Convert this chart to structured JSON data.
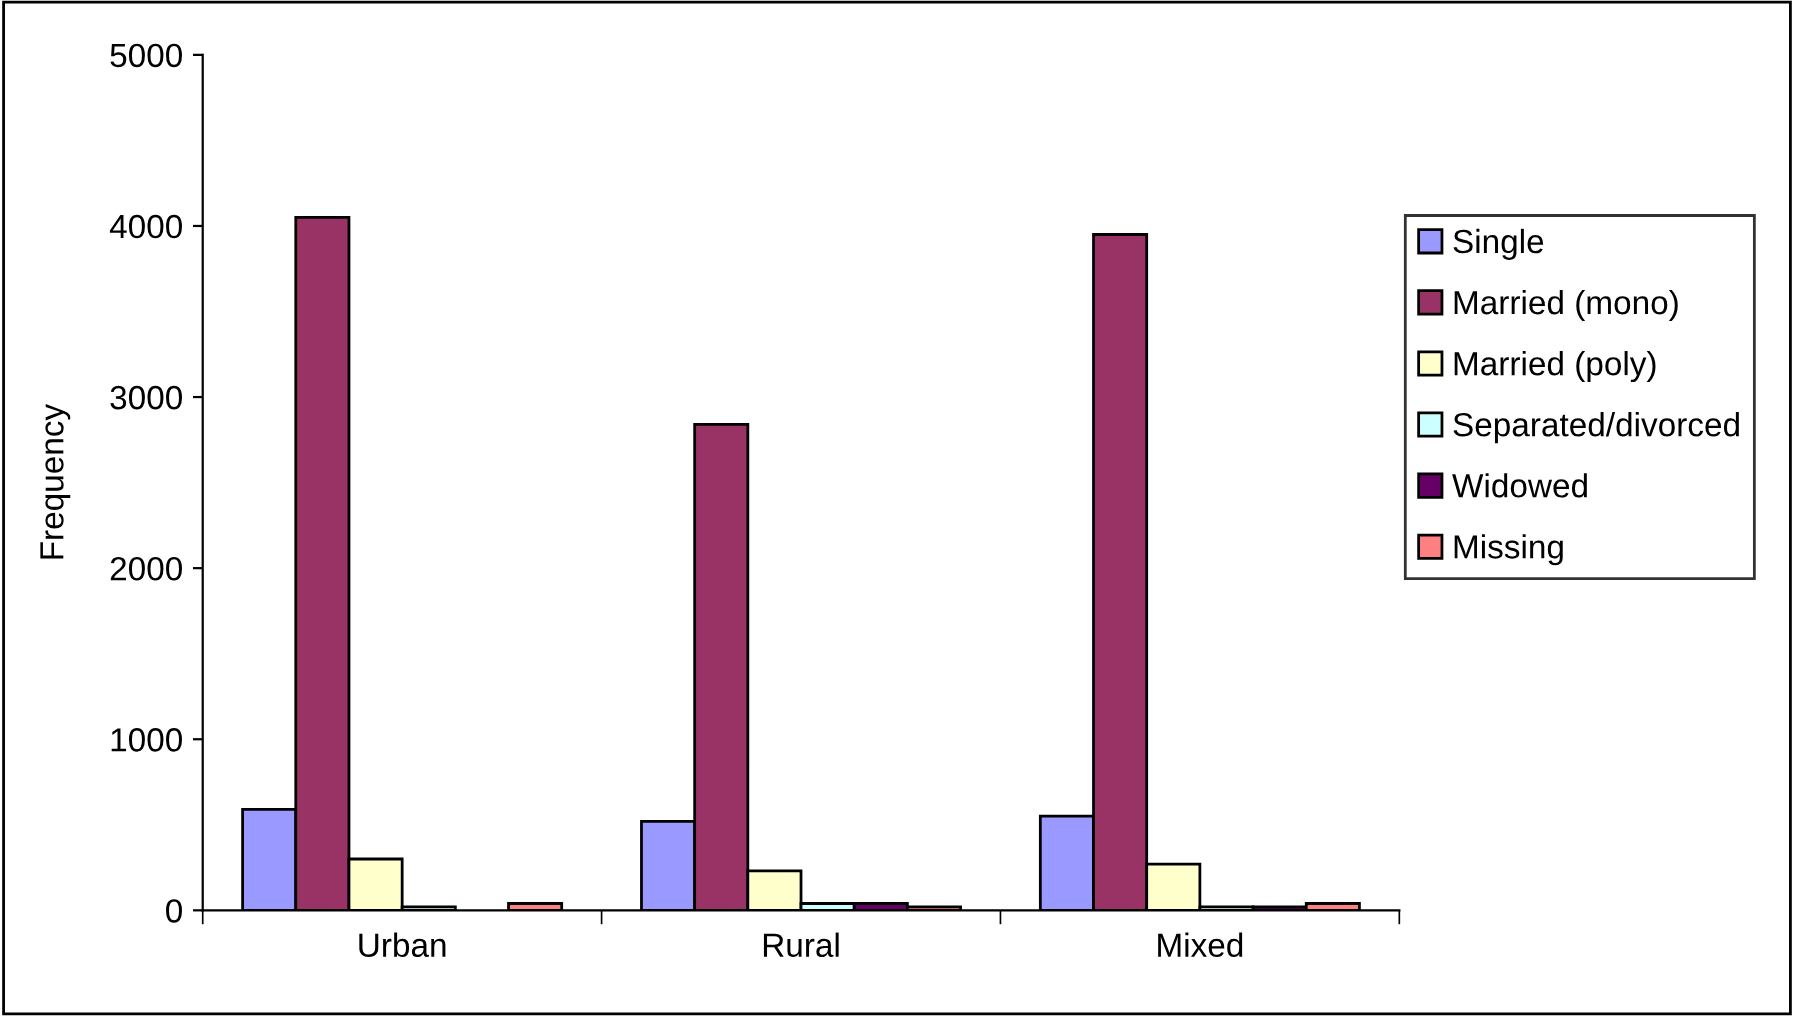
{
  "chart_data": {
    "type": "bar",
    "ylabel": "Frequency",
    "categories": [
      "Urban",
      "Rural",
      "Mixed"
    ],
    "series": [
      {
        "name": "Single",
        "color": "#9999ff",
        "values": [
          590,
          520,
          550
        ]
      },
      {
        "name": "Married (mono)",
        "color": "#993366",
        "values": [
          4050,
          2840,
          3950
        ]
      },
      {
        "name": "Married (poly)",
        "color": "#ffffcc",
        "values": [
          300,
          230,
          270
        ]
      },
      {
        "name": "Separated/divorced",
        "color": "#ccffff",
        "values": [
          20,
          40,
          20
        ]
      },
      {
        "name": "Widowed",
        "color": "#660066",
        "values": [
          null,
          40,
          20
        ]
      },
      {
        "name": "Missing",
        "color": "#ff8080",
        "values": [
          40,
          20,
          40
        ]
      }
    ],
    "ylim": [
      0,
      5000
    ],
    "yticks": [
      0,
      1000,
      2000,
      3000,
      4000,
      5000
    ],
    "grid": false,
    "legend": "right"
  }
}
